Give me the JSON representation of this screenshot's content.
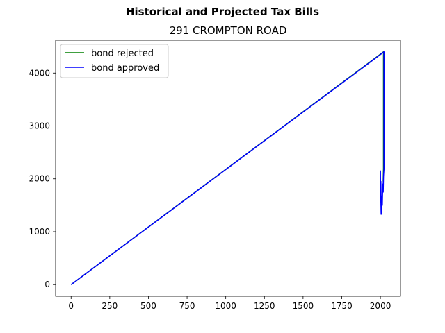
{
  "chart_data": {
    "type": "line",
    "suptitle": "Historical and Projected Tax Bills",
    "title": "291 CROMPTON ROAD",
    "xlabel": "",
    "ylabel": "",
    "xlim": [
      -100,
      2130
    ],
    "ylim": [
      -220,
      4620
    ],
    "x_ticks": [
      0,
      250,
      500,
      750,
      1000,
      1250,
      1500,
      1750,
      2000
    ],
    "x_tick_labels": [
      "0",
      "250",
      "500",
      "750",
      "1000",
      "1250",
      "1500",
      "1750",
      "2000"
    ],
    "y_ticks": [
      0,
      1000,
      2000,
      3000,
      4000
    ],
    "y_tick_labels": [
      "0",
      "1000",
      "2000",
      "3000",
      "4000"
    ],
    "grid": false,
    "legend_position": "upper-left",
    "series": [
      {
        "name": "bond rejected",
        "color": "#008000",
        "points": [
          [
            0,
            0
          ],
          [
            2020,
            4400
          ],
          [
            2020,
            2200
          ],
          [
            2018,
            1950
          ]
        ]
      },
      {
        "name": "bond approved",
        "color": "#0000ff",
        "points": [
          [
            0,
            0
          ],
          [
            2023,
            4400
          ],
          [
            2023,
            2180
          ],
          [
            2020,
            2050
          ],
          [
            2018,
            1750
          ],
          [
            2015,
            1900
          ],
          [
            2012,
            1500
          ],
          [
            2010,
            1950
          ],
          [
            2008,
            1400
          ],
          [
            2006,
            1550
          ],
          [
            2005,
            1330
          ],
          [
            2003,
            1600
          ],
          [
            2001,
            1700
          ],
          [
            2000,
            2150
          ],
          [
            1999,
            1900
          ]
        ]
      }
    ]
  }
}
